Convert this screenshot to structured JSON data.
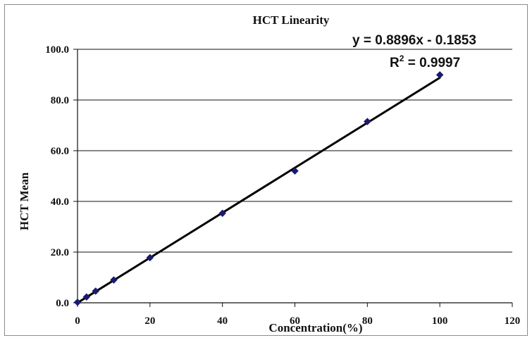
{
  "chart_data": {
    "type": "scatter",
    "title": "HCT Linearity",
    "xlabel": "Concentration(%)",
    "ylabel": "HCT Mean",
    "xlim": [
      0,
      120
    ],
    "ylim": [
      0,
      100
    ],
    "x_ticks": [
      "0",
      "20",
      "40",
      "60",
      "80",
      "100",
      "120"
    ],
    "y_ticks": [
      "0.0",
      "20.0",
      "40.0",
      "60.0",
      "80.0",
      "100.0"
    ],
    "grid": "horizontal",
    "legend": "none",
    "series": [
      {
        "x": [
          0,
          2.5,
          5,
          10,
          20,
          40,
          60,
          80,
          100
        ],
        "y": [
          0.2,
          2.3,
          4.6,
          9.0,
          17.8,
          35.3,
          52.0,
          71.5,
          89.9
        ],
        "marker_color": "#1a1a6e"
      }
    ],
    "trendline": {
      "slope": 0.8896,
      "intercept": -0.1853,
      "color": "#000000"
    },
    "annotations": {
      "equation_lhs": "y = 0.8896x - 0.1853",
      "r2_symbol": "R",
      "r2_exponent": "2",
      "r2_value": " = 0.9997"
    }
  }
}
